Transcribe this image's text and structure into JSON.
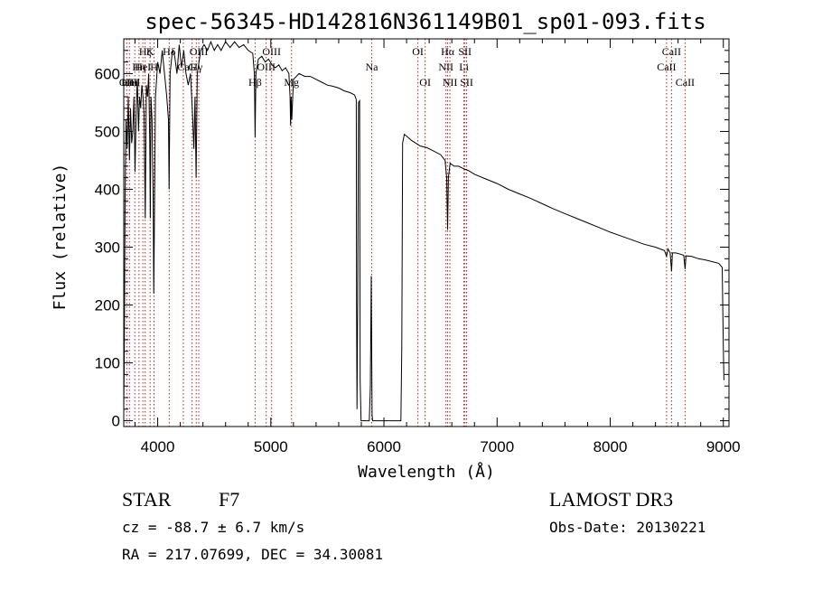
{
  "chart_data": {
    "type": "line",
    "title": "spec-56345-HD142816N361149B01_sp01-093.fits",
    "xlabel": "Wavelength (Å)",
    "ylabel": "Flux (relative)",
    "xlim": [
      3700,
      9050
    ],
    "ylim": [
      -10,
      660
    ],
    "xticks": [
      4000,
      5000,
      6000,
      7000,
      8000,
      9000
    ],
    "yticks": [
      0,
      100,
      200,
      300,
      400,
      500,
      600
    ],
    "series": [
      {
        "name": "flux",
        "points": [
          [
            3700,
            20
          ],
          [
            3705,
            120
          ],
          [
            3712,
            390
          ],
          [
            3720,
            520
          ],
          [
            3730,
            470
          ],
          [
            3740,
            560
          ],
          [
            3750,
            450
          ],
          [
            3760,
            540
          ],
          [
            3770,
            480
          ],
          [
            3780,
            500
          ],
          [
            3790,
            560
          ],
          [
            3800,
            430
          ],
          [
            3810,
            540
          ],
          [
            3820,
            590
          ],
          [
            3830,
            500
          ],
          [
            3840,
            560
          ],
          [
            3850,
            540
          ],
          [
            3860,
            580
          ],
          [
            3870,
            560
          ],
          [
            3880,
            530
          ],
          [
            3890,
            350
          ],
          [
            3900,
            580
          ],
          [
            3910,
            560
          ],
          [
            3920,
            600
          ],
          [
            3930,
            480
          ],
          [
            3935,
            350
          ],
          [
            3940,
            560
          ],
          [
            3950,
            520
          ],
          [
            3960,
            380
          ],
          [
            3965,
            220
          ],
          [
            3970,
            320
          ],
          [
            3980,
            560
          ],
          [
            4000,
            620
          ],
          [
            4020,
            600
          ],
          [
            4040,
            640
          ],
          [
            4060,
            600
          ],
          [
            4080,
            560
          ],
          [
            4095,
            520
          ],
          [
            4101,
            400
          ],
          [
            4110,
            600
          ],
          [
            4130,
            640
          ],
          [
            4150,
            630
          ],
          [
            4170,
            600
          ],
          [
            4190,
            650
          ],
          [
            4210,
            610
          ],
          [
            4230,
            640
          ],
          [
            4250,
            600
          ],
          [
            4270,
            580
          ],
          [
            4290,
            600
          ],
          [
            4310,
            520
          ],
          [
            4320,
            470
          ],
          [
            4330,
            560
          ],
          [
            4340,
            420
          ],
          [
            4350,
            600
          ],
          [
            4380,
            640
          ],
          [
            4410,
            650
          ],
          [
            4440,
            640
          ],
          [
            4470,
            655
          ],
          [
            4500,
            640
          ],
          [
            4530,
            650
          ],
          [
            4560,
            640
          ],
          [
            4600,
            655
          ],
          [
            4640,
            645
          ],
          [
            4680,
            655
          ],
          [
            4720,
            645
          ],
          [
            4760,
            650
          ],
          [
            4800,
            640
          ],
          [
            4840,
            635
          ],
          [
            4855,
            600
          ],
          [
            4861,
            490
          ],
          [
            4868,
            600
          ],
          [
            4890,
            625
          ],
          [
            4920,
            630
          ],
          [
            4950,
            620
          ],
          [
            4980,
            625
          ],
          [
            5010,
            615
          ],
          [
            5040,
            610
          ],
          [
            5070,
            615
          ],
          [
            5100,
            605
          ],
          [
            5130,
            610
          ],
          [
            5160,
            600
          ],
          [
            5170,
            560
          ],
          [
            5175,
            510
          ],
          [
            5180,
            560
          ],
          [
            5185,
            520
          ],
          [
            5200,
            590
          ],
          [
            5250,
            600
          ],
          [
            5300,
            595
          ],
          [
            5350,
            595
          ],
          [
            5400,
            590
          ],
          [
            5450,
            585
          ],
          [
            5500,
            580
          ],
          [
            5550,
            578
          ],
          [
            5600,
            575
          ],
          [
            5650,
            570
          ],
          [
            5700,
            567
          ],
          [
            5740,
            563
          ],
          [
            5755,
            555
          ],
          [
            5758,
            200
          ],
          [
            5762,
            20
          ],
          [
            5768,
            210
          ],
          [
            5775,
            550
          ],
          [
            5785,
            553
          ],
          [
            5790,
            70
          ],
          [
            5798,
            0
          ],
          [
            5815,
            0
          ],
          [
            5850,
            0
          ],
          [
            5870,
            0
          ],
          [
            5880,
            60
          ],
          [
            5888,
            250
          ],
          [
            5895,
            10
          ],
          [
            5900,
            0
          ],
          [
            5950,
            0
          ],
          [
            6000,
            0
          ],
          [
            6050,
            0
          ],
          [
            6100,
            0
          ],
          [
            6150,
            0
          ],
          [
            6158,
            130
          ],
          [
            6165,
            480
          ],
          [
            6180,
            495
          ],
          [
            6200,
            492
          ],
          [
            6240,
            485
          ],
          [
            6280,
            480
          ],
          [
            6320,
            475
          ],
          [
            6380,
            472
          ],
          [
            6440,
            466
          ],
          [
            6500,
            460
          ],
          [
            6540,
            450
          ],
          [
            6555,
            420
          ],
          [
            6563,
            330
          ],
          [
            6570,
            420
          ],
          [
            6585,
            445
          ],
          [
            6620,
            440
          ],
          [
            6660,
            440
          ],
          [
            6700,
            436
          ],
          [
            6750,
            432
          ],
          [
            6800,
            426
          ],
          [
            6900,
            418
          ],
          [
            7000,
            410
          ],
          [
            7100,
            400
          ],
          [
            7200,
            392
          ],
          [
            7300,
            384
          ],
          [
            7400,
            375
          ],
          [
            7500,
            366
          ],
          [
            7600,
            358
          ],
          [
            7700,
            350
          ],
          [
            7800,
            342
          ],
          [
            7900,
            334
          ],
          [
            8000,
            326
          ],
          [
            8100,
            319
          ],
          [
            8200,
            312
          ],
          [
            8300,
            305
          ],
          [
            8400,
            300
          ],
          [
            8480,
            294
          ],
          [
            8498,
            284
          ],
          [
            8510,
            297
          ],
          [
            8530,
            290
          ],
          [
            8542,
            258
          ],
          [
            8550,
            290
          ],
          [
            8580,
            290
          ],
          [
            8620,
            288
          ],
          [
            8650,
            286
          ],
          [
            8662,
            262
          ],
          [
            8670,
            285
          ],
          [
            8720,
            284
          ],
          [
            8780,
            280
          ],
          [
            8840,
            278
          ],
          [
            8900,
            275
          ],
          [
            8960,
            272
          ],
          [
            8990,
            265
          ],
          [
            9000,
            130
          ],
          [
            9005,
            70
          ]
        ]
      }
    ],
    "lines": [
      {
        "wave": 3726,
        "label": "OII",
        "row": 3
      },
      {
        "wave": 3750,
        "label": "Hm",
        "row": 3
      },
      {
        "wave": 3797,
        "label": "Hl",
        "row": 3
      },
      {
        "wave": 3835,
        "label": "Hη",
        "row": 2
      },
      {
        "wave": 3869,
        "label": "HeI",
        "row": 2
      },
      {
        "wave": 3889,
        "label": "Hζ",
        "row": 1
      },
      {
        "wave": 3933,
        "label": "K",
        "row": 1
      },
      {
        "wave": 3968,
        "label": "H",
        "row": 2
      },
      {
        "wave": 4102,
        "label": "Hδ",
        "row": 1
      },
      {
        "wave": 4227,
        "label": "Ca",
        "row": 2
      },
      {
        "wave": 4304,
        "label": "G",
        "row": 2
      },
      {
        "wave": 4341,
        "label": "Hγ",
        "row": 2
      },
      {
        "wave": 4363,
        "label": "OIII",
        "row": 1
      },
      {
        "wave": 4861,
        "label": "Hβ",
        "row": 3
      },
      {
        "wave": 4959,
        "label": "OIII",
        "row": 2
      },
      {
        "wave": 5007,
        "label": "OIII",
        "row": 1
      },
      {
        "wave": 5183,
        "label": "Mg",
        "row": 3
      },
      {
        "wave": 5892,
        "label": "Na",
        "row": 2
      },
      {
        "wave": 6300,
        "label": "OI",
        "row": 1
      },
      {
        "wave": 6364,
        "label": "OI",
        "row": 3
      },
      {
        "wave": 6548,
        "label": "NII",
        "row": 2
      },
      {
        "wave": 6563,
        "label": "Hα",
        "row": 1
      },
      {
        "wave": 6583,
        "label": "NII",
        "row": 3
      },
      {
        "wave": 6707,
        "label": "Li",
        "row": 2
      },
      {
        "wave": 6716,
        "label": "SII",
        "row": 1
      },
      {
        "wave": 6731,
        "label": "SII",
        "row": 3
      },
      {
        "wave": 8498,
        "label": "CaII",
        "row": 2
      },
      {
        "wave": 8542,
        "label": "CaII",
        "row": 1
      },
      {
        "wave": 8662,
        "label": "CaII",
        "row": 3
      }
    ]
  },
  "info": {
    "class_label": "STAR",
    "subclass": "F7",
    "cz": "cz = -88.7 ± 6.7 km/s",
    "radec": "RA = 217.07699, DEC =  34.30081",
    "survey": "LAMOST DR3",
    "obs_date": "Obs-Date: 20130221"
  },
  "colors": {
    "spectrum": "#000000",
    "line_marker": "#b22222",
    "axis": "#000000"
  }
}
